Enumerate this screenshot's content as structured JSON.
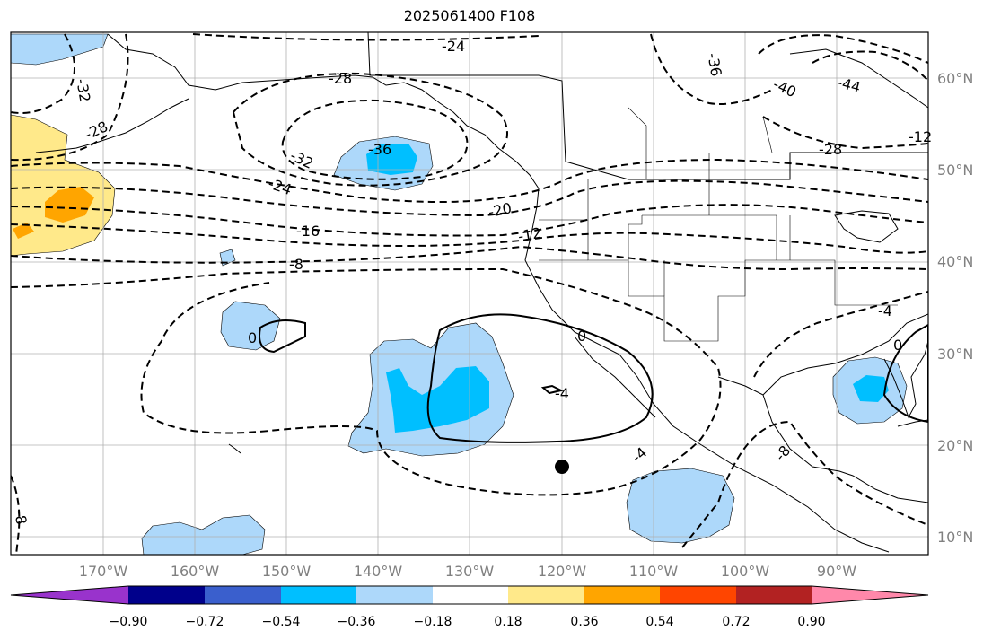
{
  "title": "2025061400 F108",
  "map": {
    "lat_labels": [
      "60°N",
      "50°N",
      "40°N",
      "30°N",
      "20°N",
      "10°N"
    ],
    "lon_labels": [
      "170°W",
      "160°W",
      "150°W",
      "140°W",
      "130°W",
      "120°W",
      "110°W",
      "100°W",
      "90°W"
    ],
    "contour_labels": [
      "-24",
      "-28",
      "-32",
      "-28",
      "-36",
      "-32",
      "-24",
      "-20",
      "-16",
      "-12",
      "-8",
      "0",
      "-4",
      "-4",
      "-36",
      "-40",
      "-44",
      "-28",
      "-12",
      "-8",
      "-8",
      "-4",
      "0"
    ],
    "contour_style": "dashed negative, solid zero/positive"
  },
  "colorbar": {
    "ticks": [
      "−0.90",
      "−0.72",
      "−0.54",
      "−0.36",
      "−0.18",
      "0.18",
      "0.36",
      "0.54",
      "0.72",
      "0.90"
    ],
    "colors": [
      "#9933cc",
      "#00008b",
      "#3a5fcd",
      "#00bfff",
      "#add8fa",
      "#ffffff",
      "#ffe98a",
      "#ffa500",
      "#ff4500",
      "#b22222",
      "#ff88aa"
    ]
  }
}
